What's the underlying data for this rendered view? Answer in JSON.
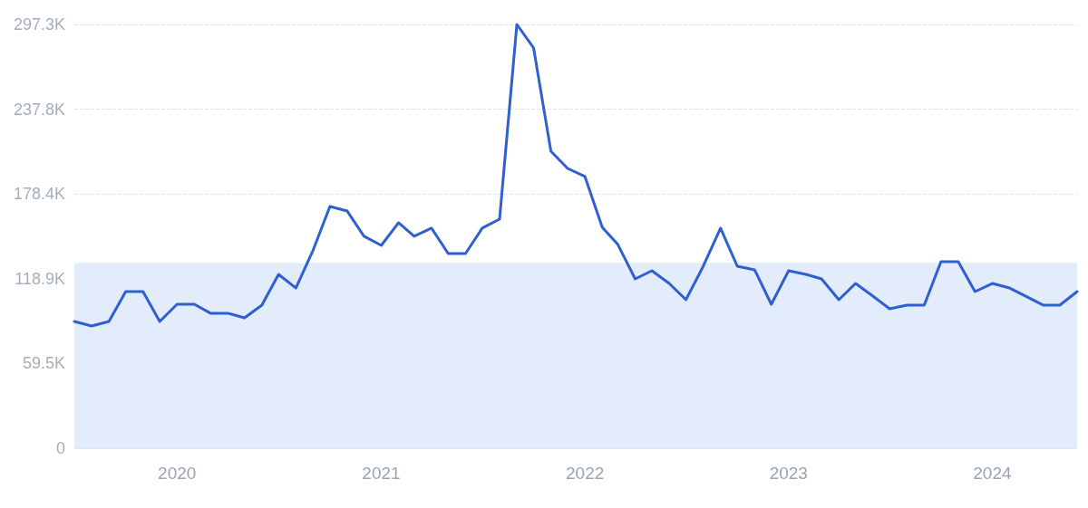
{
  "chart_data": {
    "type": "line",
    "x": [
      "2019-07",
      "2019-08",
      "2019-09",
      "2019-10",
      "2019-11",
      "2019-12",
      "2020-01",
      "2020-02",
      "2020-03",
      "2020-04",
      "2020-05",
      "2020-06",
      "2020-07",
      "2020-08",
      "2020-09",
      "2020-10",
      "2020-11",
      "2020-12",
      "2021-01",
      "2021-02",
      "2021-03",
      "2021-04",
      "2021-05",
      "2021-06",
      "2021-07",
      "2021-08",
      "2021-09",
      "2021-10",
      "2021-11",
      "2021-12",
      "2022-01",
      "2022-02",
      "2022-03",
      "2022-04",
      "2022-05",
      "2022-06",
      "2022-07",
      "2022-08",
      "2022-09",
      "2022-10",
      "2022-11",
      "2022-12",
      "2023-01",
      "2023-02",
      "2023-03",
      "2023-04",
      "2023-05",
      "2023-06",
      "2023-07",
      "2023-08",
      "2023-09",
      "2023-10",
      "2023-11",
      "2023-12",
      "2024-01",
      "2024-02",
      "2024-03",
      "2024-04",
      "2024-05",
      "2024-06"
    ],
    "series": [
      {
        "color": "#2f5fd0",
        "values": [
          88.9,
          85.8,
          88.9,
          109.9,
          109.9,
          88.9,
          101.0,
          101.0,
          94.7,
          94.7,
          91.5,
          100.4,
          122.0,
          112.4,
          139.1,
          169.6,
          166.4,
          148.7,
          142.3,
          158.2,
          148.7,
          154.4,
          136.6,
          136.6,
          154.4,
          160.7,
          297.3,
          280.8,
          208.4,
          196.3,
          190.6,
          155.0,
          142.9,
          118.8,
          124.5,
          115.6,
          104.2,
          127.7,
          154.4,
          127.7,
          125.2,
          101.0,
          124.5,
          122.0,
          118.8,
          104.2,
          115.6,
          106.7,
          97.8,
          100.4,
          100.4,
          130.9,
          130.9,
          109.9,
          115.6,
          112.4,
          106.7,
          100.4,
          100.4,
          109.9
        ]
      }
    ],
    "xlim": [
      "2019-07",
      "2024-06"
    ],
    "xticks": [
      "2020",
      "2021",
      "2022",
      "2023",
      "2024"
    ],
    "ylim": [
      0,
      297.3
    ],
    "yticks": [
      {
        "value": 0,
        "label": "0"
      },
      {
        "value": 59.5,
        "label": "59.5K"
      },
      {
        "value": 118.9,
        "label": "118.9K"
      },
      {
        "value": 178.4,
        "label": "178.4K"
      },
      {
        "value": 237.8,
        "label": "237.8K"
      },
      {
        "value": 297.3,
        "label": "297.3K"
      }
    ],
    "bands": [
      {
        "axis": "y",
        "from": 0,
        "to": 130,
        "color": "#e2ecfb"
      }
    ],
    "grid": "y",
    "marker": "none",
    "line_style": "solid"
  }
}
